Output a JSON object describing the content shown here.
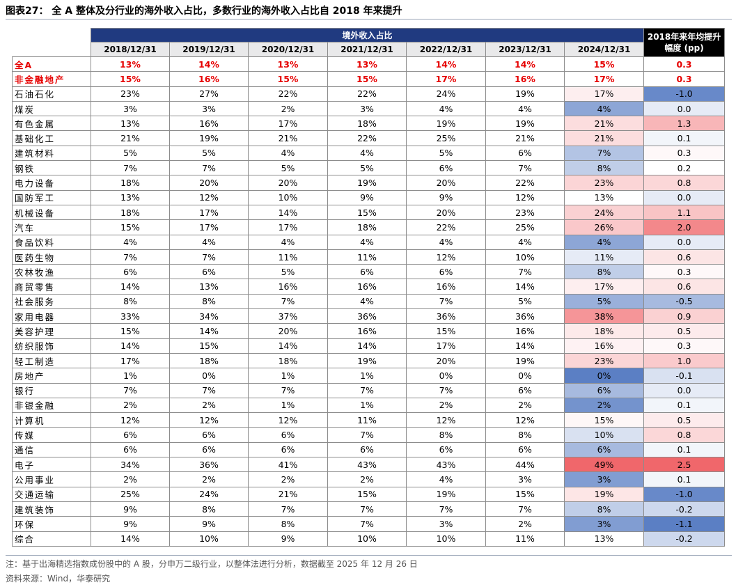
{
  "title": "图表27：  全 A 整体及分行业的海外收入占比，多数行业的海外收入占比自 2018 年来提升",
  "table": {
    "group_header": "境外收入占比",
    "columns": [
      "2018/12/31",
      "2019/12/31",
      "2020/12/31",
      "2021/12/31",
      "2022/12/31",
      "2023/12/31",
      "2024/12/31"
    ],
    "change_header": "2018年来年均提升幅度 (pp)",
    "header_color": "#203a80",
    "change_header_color": "#000000",
    "highlight_color": "#e60000",
    "heatmap": {
      "columns": [
        6,
        7
      ],
      "low_color": "#5b7fc4",
      "high_color": "#f0676b"
    },
    "rows": [
      {
        "label": "全A",
        "highlight": true,
        "cells": [
          "13%",
          "14%",
          "13%",
          "13%",
          "14%",
          "14%",
          "15%",
          "0.3"
        ]
      },
      {
        "label": "非金融地产",
        "highlight": true,
        "cells": [
          "15%",
          "16%",
          "15%",
          "15%",
          "17%",
          "16%",
          "17%",
          "0.3"
        ]
      },
      {
        "label": "石油石化",
        "cells": [
          "23%",
          "27%",
          "22%",
          "22%",
          "24%",
          "19%",
          "17%",
          "-1.0"
        ]
      },
      {
        "label": "煤炭",
        "cells": [
          "3%",
          "3%",
          "2%",
          "3%",
          "4%",
          "4%",
          "4%",
          "0.0"
        ]
      },
      {
        "label": "有色金属",
        "cells": [
          "13%",
          "16%",
          "17%",
          "18%",
          "19%",
          "19%",
          "21%",
          "1.3"
        ]
      },
      {
        "label": "基础化工",
        "cells": [
          "21%",
          "19%",
          "21%",
          "22%",
          "25%",
          "21%",
          "21%",
          "0.1"
        ]
      },
      {
        "label": "建筑材料",
        "cells": [
          "5%",
          "5%",
          "4%",
          "4%",
          "5%",
          "6%",
          "7%",
          "0.3"
        ]
      },
      {
        "label": "钢铁",
        "cells": [
          "7%",
          "7%",
          "5%",
          "5%",
          "6%",
          "7%",
          "8%",
          "0.2"
        ]
      },
      {
        "label": "电力设备",
        "cells": [
          "18%",
          "20%",
          "20%",
          "19%",
          "20%",
          "22%",
          "23%",
          "0.8"
        ]
      },
      {
        "label": "国防军工",
        "cells": [
          "13%",
          "12%",
          "10%",
          "9%",
          "9%",
          "12%",
          "13%",
          "0.0"
        ]
      },
      {
        "label": "机械设备",
        "cells": [
          "18%",
          "17%",
          "14%",
          "15%",
          "20%",
          "23%",
          "24%",
          "1.1"
        ]
      },
      {
        "label": "汽车",
        "cells": [
          "15%",
          "17%",
          "17%",
          "18%",
          "22%",
          "25%",
          "26%",
          "2.0"
        ]
      },
      {
        "label": "食品饮料",
        "cells": [
          "4%",
          "4%",
          "4%",
          "4%",
          "4%",
          "4%",
          "4%",
          "0.0"
        ]
      },
      {
        "label": "医药生物",
        "cells": [
          "7%",
          "7%",
          "11%",
          "11%",
          "12%",
          "10%",
          "11%",
          "0.6"
        ]
      },
      {
        "label": "农林牧渔",
        "cells": [
          "6%",
          "6%",
          "5%",
          "6%",
          "6%",
          "7%",
          "8%",
          "0.3"
        ]
      },
      {
        "label": "商贸零售",
        "cells": [
          "14%",
          "13%",
          "16%",
          "16%",
          "16%",
          "14%",
          "17%",
          "0.6"
        ]
      },
      {
        "label": "社会服务",
        "cells": [
          "8%",
          "8%",
          "7%",
          "4%",
          "7%",
          "5%",
          "5%",
          "-0.5"
        ]
      },
      {
        "label": "家用电器",
        "cells": [
          "33%",
          "34%",
          "37%",
          "36%",
          "36%",
          "36%",
          "38%",
          "0.9"
        ]
      },
      {
        "label": "美容护理",
        "cells": [
          "15%",
          "14%",
          "20%",
          "16%",
          "15%",
          "16%",
          "18%",
          "0.5"
        ]
      },
      {
        "label": "纺织服饰",
        "cells": [
          "14%",
          "15%",
          "14%",
          "14%",
          "17%",
          "14%",
          "16%",
          "0.3"
        ]
      },
      {
        "label": "轻工制造",
        "cells": [
          "17%",
          "18%",
          "18%",
          "19%",
          "20%",
          "19%",
          "23%",
          "1.0"
        ]
      },
      {
        "label": "房地产",
        "cells": [
          "1%",
          "0%",
          "1%",
          "1%",
          "0%",
          "0%",
          "0%",
          "-0.1"
        ]
      },
      {
        "label": "银行",
        "cells": [
          "7%",
          "7%",
          "7%",
          "7%",
          "7%",
          "6%",
          "6%",
          "0.0"
        ]
      },
      {
        "label": "非银金融",
        "cells": [
          "2%",
          "2%",
          "1%",
          "1%",
          "2%",
          "2%",
          "2%",
          "0.1"
        ]
      },
      {
        "label": "计算机",
        "cells": [
          "12%",
          "12%",
          "12%",
          "11%",
          "12%",
          "12%",
          "15%",
          "0.5"
        ]
      },
      {
        "label": "传媒",
        "cells": [
          "6%",
          "6%",
          "6%",
          "7%",
          "8%",
          "8%",
          "10%",
          "0.8"
        ]
      },
      {
        "label": "通信",
        "cells": [
          "6%",
          "6%",
          "6%",
          "6%",
          "6%",
          "6%",
          "6%",
          "0.1"
        ]
      },
      {
        "label": "电子",
        "cells": [
          "34%",
          "36%",
          "41%",
          "43%",
          "43%",
          "44%",
          "49%",
          "2.5"
        ]
      },
      {
        "label": "公用事业",
        "cells": [
          "2%",
          "2%",
          "2%",
          "2%",
          "4%",
          "3%",
          "3%",
          "0.1"
        ]
      },
      {
        "label": "交通运输",
        "cells": [
          "25%",
          "24%",
          "21%",
          "15%",
          "19%",
          "15%",
          "19%",
          "-1.0"
        ]
      },
      {
        "label": "建筑装饰",
        "cells": [
          "9%",
          "8%",
          "7%",
          "7%",
          "7%",
          "7%",
          "8%",
          "-0.2"
        ]
      },
      {
        "label": "环保",
        "cells": [
          "9%",
          "9%",
          "8%",
          "7%",
          "3%",
          "2%",
          "3%",
          "-1.1"
        ]
      },
      {
        "label": "综合",
        "cells": [
          "14%",
          "10%",
          "9%",
          "10%",
          "10%",
          "11%",
          "13%",
          "-0.2"
        ]
      }
    ]
  },
  "note": "注：基于出海精选指数成份股中的 A 股，分申万二级行业，以整体法进行分析，数据截至 2025 年 12 月 26 日",
  "source": "资料来源：Wind，华泰研究"
}
